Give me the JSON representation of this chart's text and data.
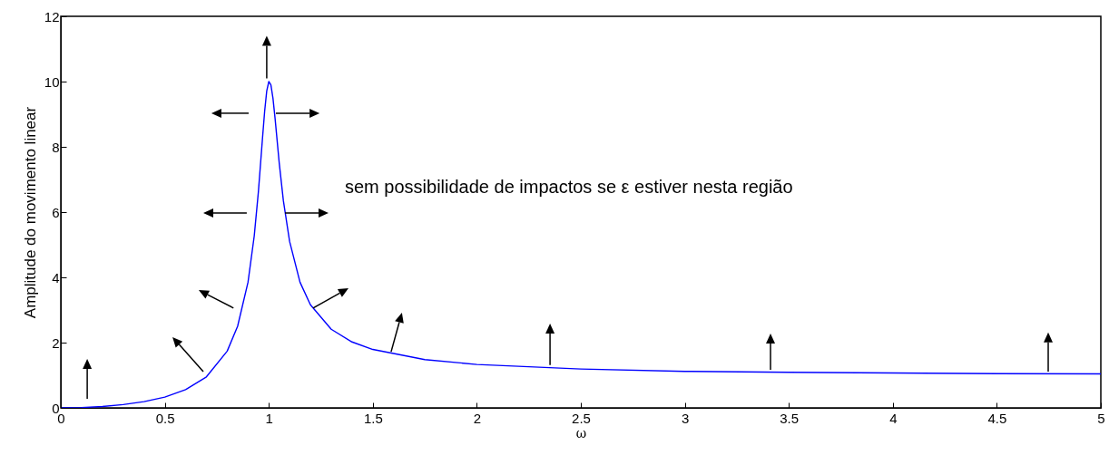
{
  "chart_data": {
    "type": "line",
    "xlabel": "ω",
    "ylabel": "Amplitude do movimento linear",
    "x": [
      0,
      0.1,
      0.2,
      0.3,
      0.4,
      0.5,
      0.6,
      0.7,
      0.8,
      0.85,
      0.9,
      0.93,
      0.95,
      0.97,
      0.98,
      0.99,
      1.0,
      1.01,
      1.02,
      1.03,
      1.05,
      1.07,
      1.1,
      1.15,
      1.2,
      1.3,
      1.4,
      1.5,
      1.75,
      2,
      2.5,
      3,
      3.5,
      4,
      4.5,
      5
    ],
    "series": [
      {
        "color": "#0000ff",
        "values": [
          0,
          0.01,
          0.04,
          0.1,
          0.19,
          0.33,
          0.56,
          0.95,
          1.74,
          2.5,
          3.85,
          5.27,
          6.63,
          8.29,
          9.09,
          9.71,
          10,
          9.9,
          9.49,
          8.88,
          7.51,
          6.35,
          5.1,
          3.85,
          3.16,
          2.41,
          2.02,
          1.79,
          1.48,
          1.33,
          1.19,
          1.12,
          1.09,
          1.07,
          1.05,
          1.04
        ]
      }
    ],
    "xlim": [
      0,
      5
    ],
    "xticks": [
      0,
      0.5,
      1,
      1.5,
      2,
      2.5,
      3,
      3.5,
      4,
      4.5,
      5
    ],
    "ylim": [
      0,
      12
    ],
    "yticks": [
      0,
      2,
      4,
      6,
      8,
      10,
      12
    ],
    "grid": false,
    "marker": "none",
    "line_style": "solid",
    "annotations": [
      "sem possibilidade de impactos se ε estiver nesta região"
    ]
  }
}
